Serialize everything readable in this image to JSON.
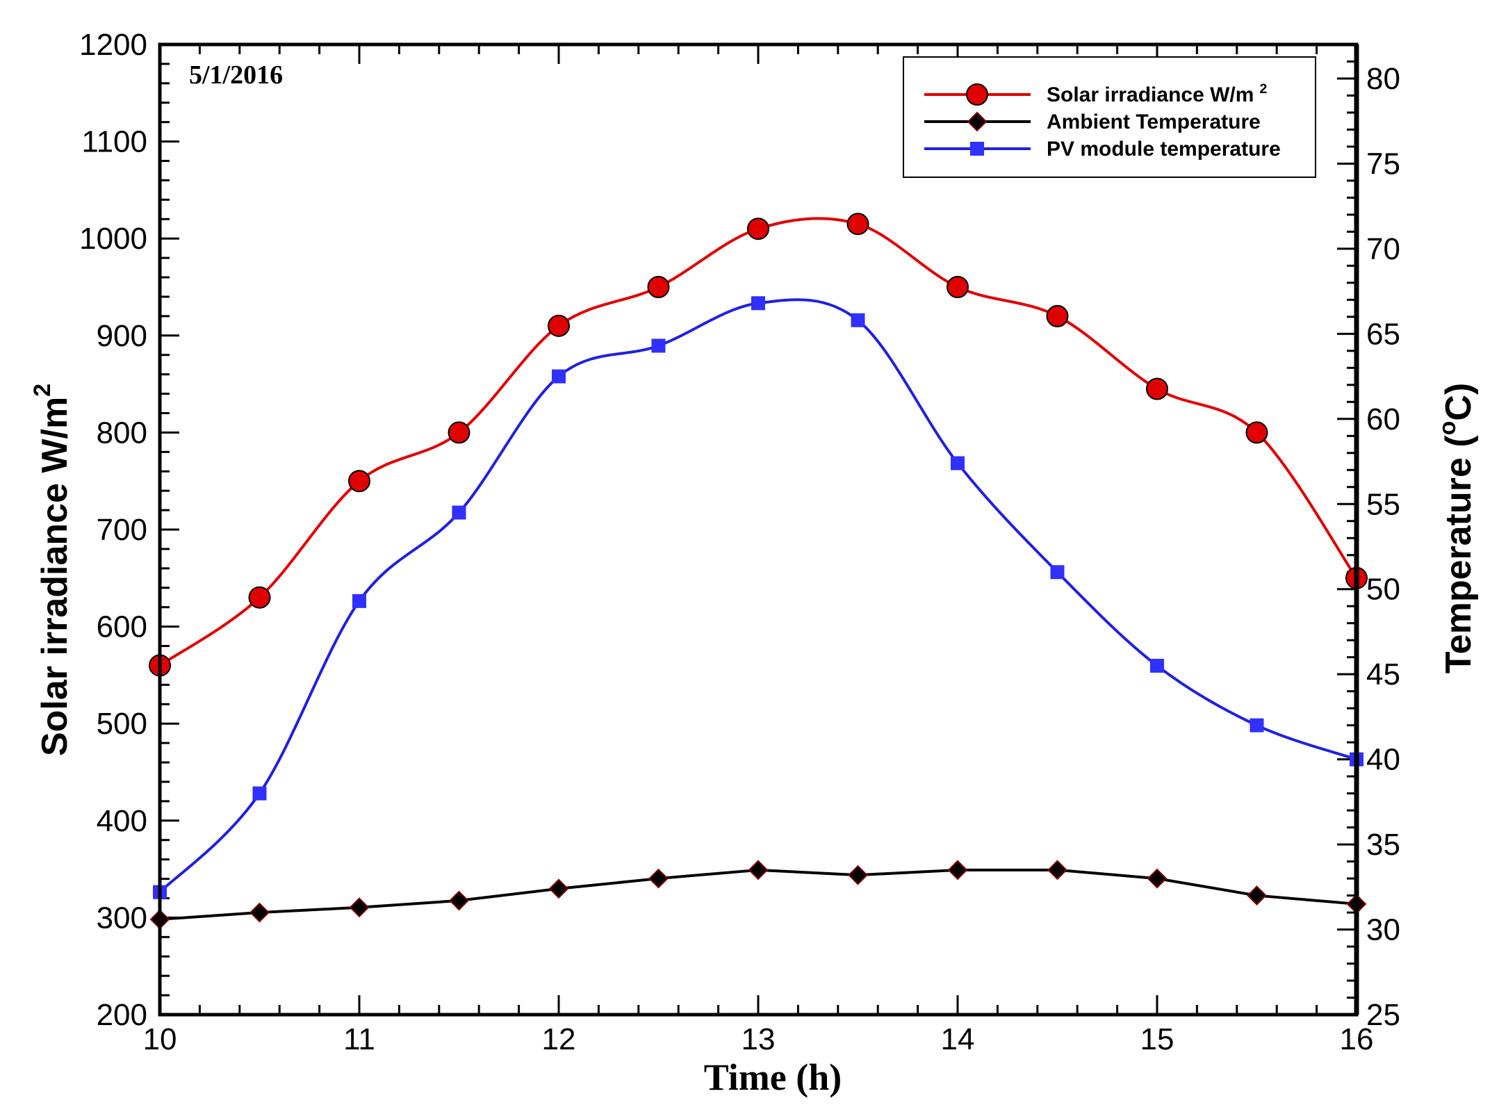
{
  "chart_data": {
    "type": "line",
    "date_label": "5/1/2016",
    "x": [
      10,
      10.5,
      11,
      11.5,
      12,
      12.5,
      13,
      13.5,
      14,
      14.5,
      15,
      15.5,
      16
    ],
    "xlim": [
      10,
      16
    ],
    "xticks": [
      10,
      11,
      12,
      13,
      14,
      15,
      16
    ],
    "xlabel": "Time (h)",
    "y_left": {
      "label": "Solar irradiance W/m",
      "label_sup": "2",
      "lim": [
        200,
        1200
      ],
      "ticks": [
        200,
        300,
        400,
        500,
        600,
        700,
        800,
        900,
        1000,
        1100,
        1200
      ]
    },
    "y_right": {
      "label": "Temperature (",
      "label_deg": "o",
      "label_unit": "C)",
      "lim": [
        25,
        82
      ],
      "ticks": [
        25,
        30,
        35,
        40,
        45,
        50,
        55,
        60,
        65,
        70,
        75,
        80
      ]
    },
    "series": [
      {
        "name": "Solar irradiance W/m",
        "name_sup": "2",
        "axis": "left",
        "color": "#e00000",
        "line_color": "#e00000",
        "marker": "circle",
        "values": [
          560,
          630,
          750,
          800,
          910,
          950,
          1010,
          1015,
          950,
          920,
          845,
          800,
          650
        ]
      },
      {
        "name": "Ambient Temperature",
        "name_sup": "",
        "axis": "right",
        "color": "#000000",
        "line_color": "#000000",
        "marker": "diamond",
        "values": [
          30.6,
          31.0,
          31.3,
          31.7,
          32.4,
          33.0,
          33.5,
          33.2,
          33.5,
          33.5,
          33.0,
          32.0,
          31.5
        ]
      },
      {
        "name": "PV module temperature",
        "name_sup": "",
        "axis": "right",
        "color": "#3030ff",
        "line_color": "#2020e0",
        "marker": "square",
        "values": [
          32.2,
          38.0,
          49.3,
          54.5,
          62.5,
          64.3,
          66.8,
          65.8,
          57.4,
          51.0,
          45.5,
          42.0,
          40.0
        ]
      }
    ],
    "legend_position": "top-right"
  }
}
